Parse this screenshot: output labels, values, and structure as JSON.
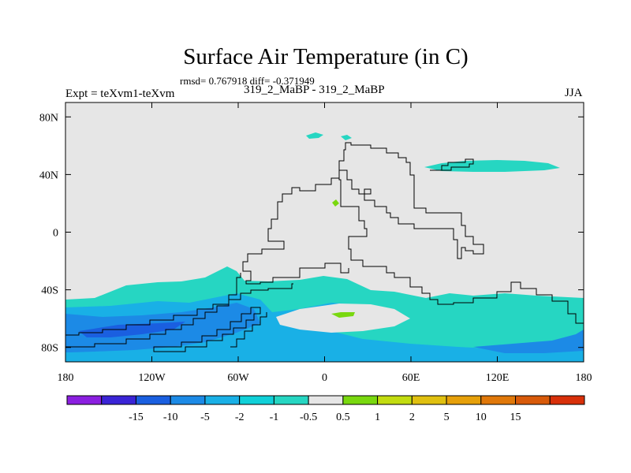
{
  "title": "Surface Air Temperature (in C)",
  "stats_line": "rmsd= 0.767918 diff= -0.371949",
  "left_label": "Expt = teXvm1-teXvm",
  "center_label": "319_2_MaBP - 319_2_MaBP",
  "right_label": "JJA",
  "chart_data": {
    "type": "heatmap",
    "title": "Surface Air Temperature (in C)",
    "xlabel": "",
    "ylabel": "",
    "xlim": [
      -180,
      180
    ],
    "ylim": [
      -90,
      90
    ],
    "x_ticks": [
      {
        "value": -180,
        "label": "180"
      },
      {
        "value": -120,
        "label": "120W"
      },
      {
        "value": -60,
        "label": "60W"
      },
      {
        "value": 0,
        "label": "0"
      },
      {
        "value": 60,
        "label": "60E"
      },
      {
        "value": 120,
        "label": "120E"
      },
      {
        "value": 180,
        "label": "180"
      }
    ],
    "y_ticks": [
      {
        "value": 80,
        "label": "80N"
      },
      {
        "value": 40,
        "label": "40N"
      },
      {
        "value": 0,
        "label": "0"
      },
      {
        "value": -40,
        "label": "40S"
      },
      {
        "value": -80,
        "label": "80S"
      }
    ],
    "colorbar": {
      "colors": [
        "#8b1fe0",
        "#3a24d6",
        "#1a5fe0",
        "#1c8ae6",
        "#19b0e6",
        "#10d0d8",
        "#26d6c2",
        "#e6e6e6",
        "#79d80f",
        "#c2dc10",
        "#e0c010",
        "#e6a00a",
        "#e0780a",
        "#d85a0a",
        "#d8300a"
      ],
      "labels": [
        "-15",
        "-10",
        "-5",
        "-2",
        "-1",
        "-0.5",
        "0.5",
        "1",
        "2",
        "5",
        "10",
        "15"
      ]
    },
    "regions": [
      {
        "name": "background",
        "level": "-0.5 to 0.5",
        "color": "#e6e6e6"
      },
      {
        "name": "southern-band",
        "level": "-1 to -0.5",
        "color": "#26d6c2"
      },
      {
        "name": "southern-band-cold",
        "level": "-2 to -1",
        "color": "#19b0e6"
      },
      {
        "name": "southern-pacific-core",
        "level": "-5 to -2",
        "color": "#1c8ae6"
      },
      {
        "name": "arctic-patch",
        "level": "-1 to -0.5",
        "color": "#26d6c2"
      },
      {
        "name": "northeast-patch",
        "level": "-1 to -0.5",
        "color": "#26d6c2"
      },
      {
        "name": "south-atlantic-warm",
        "level": "1 to 2",
        "color": "#79d80f"
      },
      {
        "name": "north-africa-warm",
        "level": "1 to 2",
        "color": "#79d80f"
      }
    ]
  }
}
